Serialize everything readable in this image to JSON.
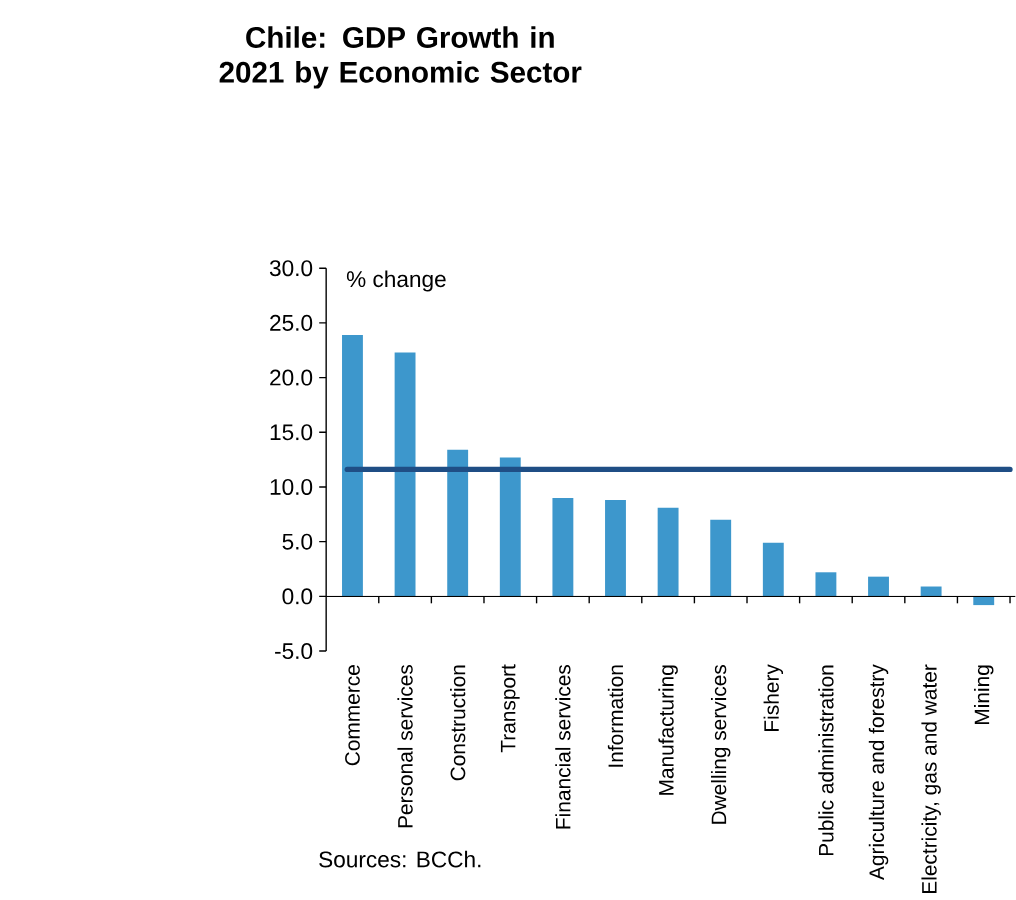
{
  "chart_data": {
    "type": "bar",
    "title": "Chile: GDP Growth in 2021 by Economic Sector",
    "ylabel": "% change",
    "categories": [
      "Commerce",
      "Personal services",
      "Construction",
      "Transport",
      "Financial services",
      "Information",
      "Manufacturing",
      "Dwelling services",
      "Fishery",
      "Public administration",
      "Agriculture and forestry",
      "Electricity, gas and water",
      "Mining"
    ],
    "values": [
      23.9,
      22.3,
      13.4,
      12.7,
      9.0,
      8.8,
      8.1,
      7.0,
      4.9,
      2.2,
      1.8,
      0.9,
      -0.8
    ],
    "color": "#3d97cc",
    "ylim": [
      -5,
      30
    ],
    "yticks": [
      {
        "value": -5,
        "label": "-5.0"
      },
      {
        "value": 0,
        "label": "0.0"
      },
      {
        "value": 5,
        "label": "5.0"
      },
      {
        "value": 10,
        "label": "10.0"
      },
      {
        "value": 15,
        "label": "15.0"
      },
      {
        "value": 20,
        "label": "20.0"
      },
      {
        "value": 25,
        "label": "25.0"
      },
      {
        "value": 30,
        "label": "30.0"
      }
    ],
    "ref_lines": [
      {
        "axis": "y",
        "value": 11.6,
        "color": "#1f4e85"
      }
    ],
    "annotations": [
      "Sources: BCCh."
    ]
  }
}
